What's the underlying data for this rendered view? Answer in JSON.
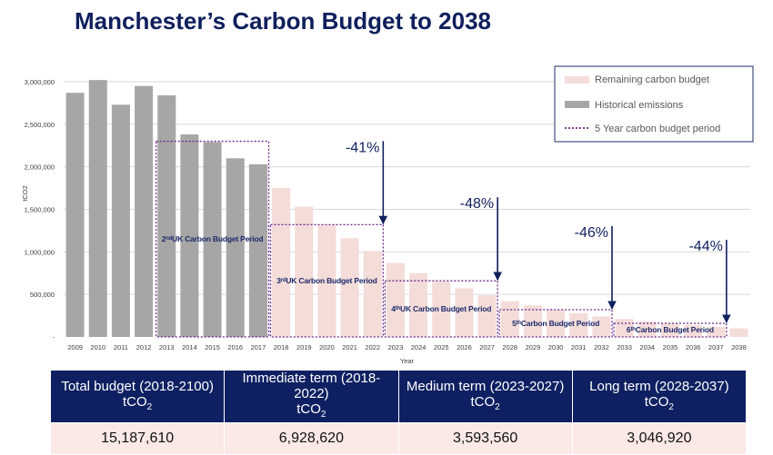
{
  "page": {
    "title": "Manchester’s Carbon Budget to 2038"
  },
  "chart_data": {
    "type": "bar",
    "title": "Manchester’s Carbon Budget to 2038",
    "xlabel": "Year",
    "ylabel": "tCO2",
    "ylim": [
      0,
      3000000
    ],
    "yticks": [
      {
        "value": 0,
        "label": "-"
      },
      {
        "value": 500000,
        "label": "500,000"
      },
      {
        "value": 1000000,
        "label": "1,000,000"
      },
      {
        "value": 1500000,
        "label": "1,500,000"
      },
      {
        "value": 2000000,
        "label": "2,000,000"
      },
      {
        "value": 2500000,
        "label": "2,500,000"
      },
      {
        "value": 3000000,
        "label": "3,000,000"
      }
    ],
    "grid": true,
    "legend_position": "top-right",
    "categories": [
      "2009",
      "2010",
      "2011",
      "2012",
      "2013",
      "2014",
      "2015",
      "2016",
      "2017",
      "2018",
      "2019",
      "2020",
      "2021",
      "2022",
      "2023",
      "2024",
      "2025",
      "2026",
      "2027",
      "2028",
      "2029",
      "2030",
      "2031",
      "2032",
      "2033",
      "2034",
      "2035",
      "2036",
      "2037",
      "2038"
    ],
    "series": [
      {
        "name": "Historical emissions",
        "color": "#a6a6a6",
        "values": [
          2870000,
          3020000,
          2730000,
          2950000,
          2840000,
          2380000,
          2290000,
          2100000,
          2030000,
          null,
          null,
          null,
          null,
          null,
          null,
          null,
          null,
          null,
          null,
          null,
          null,
          null,
          null,
          null,
          null,
          null,
          null,
          null,
          null,
          null
        ]
      },
      {
        "name": "Remaining carbon budget",
        "color": "#f4dcd9",
        "values": [
          null,
          null,
          null,
          null,
          null,
          null,
          null,
          null,
          null,
          1750000,
          1530000,
          1320000,
          1160000,
          1010000,
          870000,
          750000,
          650000,
          570000,
          490000,
          420000,
          370000,
          320000,
          280000,
          240000,
          210000,
          180000,
          160000,
          140000,
          120000,
          100000
        ]
      }
    ],
    "period_label": "5 Year carbon budget period",
    "periods": [
      {
        "label_html": "2<sup>nd</sup> UK Carbon Budget Period",
        "start": "2013",
        "end": "2017",
        "level": 2300000
      },
      {
        "label_html": "3<sup>rd</sup> UK Carbon Budget Period",
        "start": "2018",
        "end": "2022",
        "level": 1320000
      },
      {
        "label_html": "4<sup>th</sup> UK Carbon Budget Period",
        "start": "2023",
        "end": "2027",
        "level": 660000
      },
      {
        "label_html": "5<sup>th</sup> Carbon Budget Period",
        "start": "2028",
        "end": "2032",
        "level": 320000
      },
      {
        "label_html": "6<sup>th</sup> Carbon Budget Period",
        "start": "2033",
        "end": "2037",
        "level": 160000
      }
    ],
    "annotations": [
      {
        "text": "-41%",
        "at": "2022"
      },
      {
        "text": "-48%",
        "at": "2027"
      },
      {
        "text": "-46%",
        "at": "2032"
      },
      {
        "text": "-44%",
        "at": "2037"
      }
    ],
    "colors": {
      "historical": "#a6a6a6",
      "remaining": "#f4dcd9",
      "period_border": "#6a2a8a",
      "arrow": "#0f1f5c",
      "grid": "#d9d9d9"
    }
  },
  "summary": {
    "unit_prefix": "tCO",
    "unit_sub": "2",
    "columns": [
      {
        "heading": "Total budget (2018-2100)",
        "value": "15,187,610"
      },
      {
        "heading": "Immediate term (2018-2022)",
        "value": "6,928,620"
      },
      {
        "heading": "Medium term (2023-2027)",
        "value": "3,593,560"
      },
      {
        "heading": "Long term (2028-2037)",
        "value": "3,046,920"
      }
    ]
  }
}
